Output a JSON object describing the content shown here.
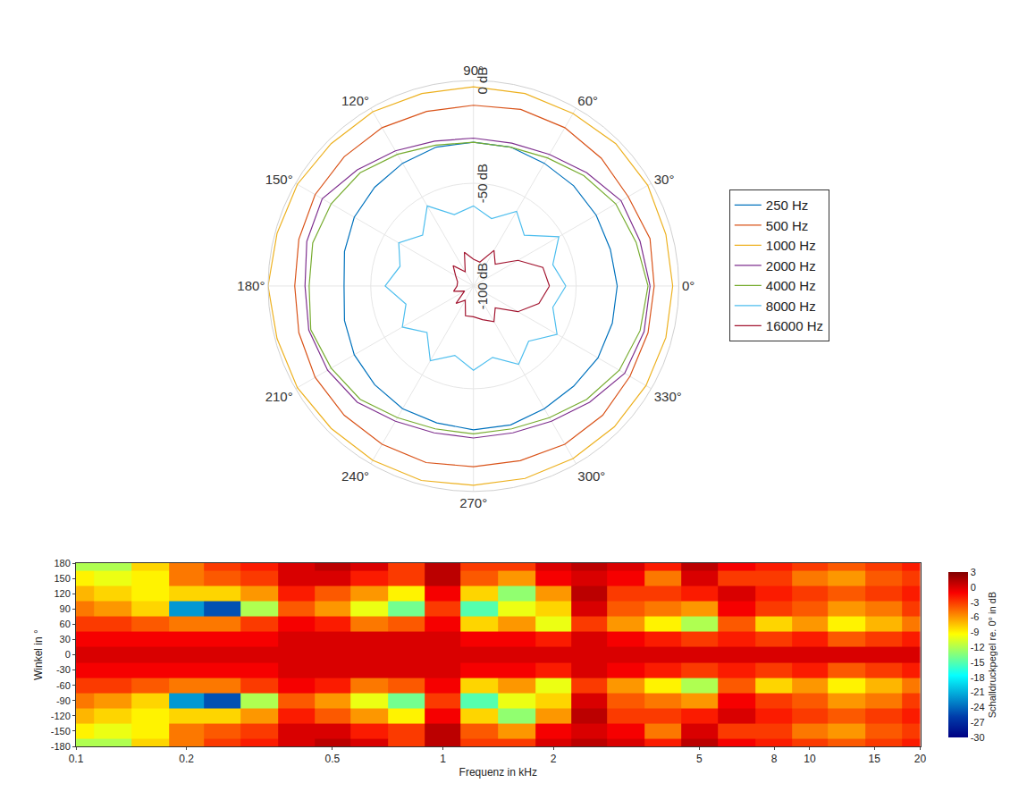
{
  "chart_data": [
    {
      "type": "polar",
      "theta": [
        0,
        15,
        30,
        45,
        60,
        75,
        90,
        105,
        120,
        135,
        150,
        165,
        180,
        195,
        210,
        225,
        240,
        255,
        270,
        285,
        300,
        315,
        330,
        345,
        360
      ],
      "angular_ticks": [
        {
          "value": 0,
          "label": "0°"
        },
        {
          "value": 30,
          "label": "30°"
        },
        {
          "value": 60,
          "label": "60°"
        },
        {
          "value": 90,
          "label": "90°"
        },
        {
          "value": 120,
          "label": "120°"
        },
        {
          "value": 150,
          "label": "150°"
        },
        {
          "value": 180,
          "label": "180°"
        },
        {
          "value": 210,
          "label": "210°"
        },
        {
          "value": 240,
          "label": "240°"
        },
        {
          "value": 270,
          "label": "270°"
        },
        {
          "value": 300,
          "label": "300°"
        },
        {
          "value": 330,
          "label": "330°"
        }
      ],
      "rlim": [
        -100,
        0
      ],
      "rticks": [
        {
          "value": -100,
          "label": "-100 dB"
        },
        {
          "value": -50,
          "label": "-50 dB"
        },
        {
          "value": 0,
          "label": "0 dB"
        }
      ],
      "grid": true,
      "legend": "right",
      "series": [
        {
          "name": "250 Hz",
          "color": "#0072BD",
          "values": [
            -30,
            -31,
            -31,
            -31,
            -31,
            -30,
            -30,
            -30,
            -31,
            -32,
            -33,
            -35,
            -37,
            -35,
            -33,
            -32,
            -31,
            -31,
            -30,
            -30,
            -31,
            -31,
            -30,
            -30,
            -30
          ]
        },
        {
          "name": "500 Hz",
          "color": "#D95319",
          "values": [
            -12,
            -11,
            -13,
            -12,
            -11,
            -11,
            -12,
            -12,
            -11,
            -11,
            -11,
            -12,
            -13,
            -12,
            -11,
            -11,
            -11,
            -11,
            -12,
            -12,
            -11,
            -11,
            -12,
            -12,
            -12
          ]
        },
        {
          "name": "1000 Hz",
          "color": "#EDB120",
          "values": [
            -3,
            -3,
            -2,
            -2,
            -3,
            -3,
            -3,
            -3,
            -2,
            -2,
            -1,
            -1,
            0,
            -1,
            -1,
            -2,
            -2,
            -2,
            -3,
            -3,
            -3,
            -3,
            -3,
            -3,
            -3
          ]
        },
        {
          "name": "2000 Hz",
          "color": "#7E2F8E",
          "values": [
            -14,
            -16,
            -17,
            -22,
            -26,
            -28,
            -28,
            -27,
            -24,
            -20,
            -15,
            -16,
            -18,
            -17,
            -18,
            -20,
            -24,
            -26,
            -26,
            -26,
            -24,
            -20,
            -15,
            -14,
            -14
          ]
        },
        {
          "name": "4000 Hz",
          "color": "#77AC30",
          "values": [
            -15,
            -18,
            -20,
            -24,
            -28,
            -30,
            -30,
            -29,
            -26,
            -22,
            -20,
            -19,
            -20,
            -18,
            -20,
            -22,
            -26,
            -28,
            -28,
            -28,
            -26,
            -22,
            -18,
            -16,
            -15
          ]
        },
        {
          "name": "8000 Hz",
          "color": "#4DBEEE",
          "values": [
            -55,
            -60,
            -52,
            -65,
            -58,
            -66,
            -61,
            -64,
            -55,
            -65,
            -58,
            -63,
            -57,
            -66,
            -60,
            -68,
            -58,
            -65,
            -59,
            -64,
            -56,
            -62,
            -53,
            -60,
            -55
          ]
        },
        {
          "name": "16000 Hz",
          "color": "#A2142F",
          "values": [
            -63,
            -65,
            -75,
            -85,
            -80,
            -88,
            -87,
            -83,
            -92,
            -86,
            -90,
            -92,
            -92,
            -90,
            -95,
            -88,
            -92,
            -85,
            -85,
            -83,
            -80,
            -85,
            -75,
            -67,
            -63
          ]
        }
      ]
    },
    {
      "type": "heatmap",
      "xlabel": "Frequenz in kHz",
      "ylabel": "Winkel in °",
      "log": "x",
      "xlim": [
        0.1,
        20
      ],
      "xticks": [
        0.1,
        0.2,
        0.5,
        1,
        2,
        5,
        8,
        10,
        15,
        20
      ],
      "ylim": [
        -180,
        180
      ],
      "yticks": [
        -180,
        -150,
        -120,
        -90,
        -60,
        -30,
        0,
        30,
        60,
        90,
        120,
        150,
        180
      ],
      "x": [
        0.1,
        0.125,
        0.16,
        0.2,
        0.25,
        0.315,
        0.4,
        0.5,
        0.63,
        0.8,
        1,
        1.25,
        1.6,
        2,
        2.5,
        3.15,
        4,
        5,
        6.3,
        8,
        10,
        12.5,
        16,
        20
      ],
      "y": [
        -180,
        -150,
        -120,
        -90,
        -60,
        -30,
        0,
        30,
        60,
        90,
        120,
        150,
        180
      ],
      "z": [
        [
          -12,
          -12,
          -8,
          -5,
          -3,
          -2,
          0,
          1,
          0,
          -3,
          1,
          -3,
          -3,
          0,
          1,
          0,
          -2,
          1,
          -1,
          -2,
          -3,
          -4,
          -3,
          -2
        ],
        [
          -9,
          -10,
          -9,
          -5,
          -4,
          -3,
          0,
          0,
          -2,
          -3,
          1,
          -4,
          -6,
          -1,
          0,
          -1,
          -5,
          0,
          -3,
          -3,
          -5,
          -6,
          -4,
          -3
        ],
        [
          -7,
          -8,
          -9,
          -8,
          -8,
          -6,
          -2,
          -4,
          -6,
          -9,
          -1,
          -8,
          -13,
          -6,
          1,
          -3,
          -3,
          -2,
          0,
          -2,
          -3,
          -4,
          -3,
          -2
        ],
        [
          -5,
          -6,
          -8,
          -22,
          -25,
          -12,
          -4,
          -6,
          -10,
          -14,
          -3,
          -15,
          -10,
          -8,
          0,
          -4,
          -5,
          -6,
          -1,
          -3,
          -4,
          -6,
          -5,
          -3
        ],
        [
          -3,
          -3,
          -4,
          -5,
          -5,
          -3,
          -1,
          -2,
          -5,
          -4,
          -1,
          -8,
          -6,
          -10,
          -3,
          -6,
          -9,
          -12,
          -4,
          -8,
          -6,
          -9,
          -7,
          -5
        ],
        [
          -1,
          -1,
          -1,
          -1,
          -1,
          -1,
          0,
          0,
          0,
          0,
          0,
          -1,
          -1,
          -2,
          0,
          -1,
          -2,
          -3,
          -2,
          -3,
          -2,
          -4,
          -3,
          -2
        ],
        [
          0,
          0,
          0,
          0,
          0,
          0,
          0,
          0,
          0,
          0,
          0,
          0,
          0,
          0,
          0,
          0,
          0,
          0,
          0,
          0,
          0,
          0,
          0,
          0
        ],
        [
          -1,
          -1,
          -1,
          -1,
          -1,
          -1,
          0,
          0,
          0,
          0,
          0,
          -1,
          -1,
          -2,
          0,
          -1,
          -2,
          -3,
          -2,
          -3,
          -2,
          -4,
          -3,
          -2
        ],
        [
          -3,
          -3,
          -4,
          -5,
          -5,
          -3,
          -1,
          -2,
          -5,
          -4,
          -1,
          -8,
          -6,
          -10,
          -3,
          -6,
          -9,
          -12,
          -4,
          -8,
          -6,
          -9,
          -7,
          -5
        ],
        [
          -5,
          -6,
          -8,
          -22,
          -25,
          -12,
          -4,
          -6,
          -10,
          -14,
          -3,
          -15,
          -10,
          -8,
          0,
          -4,
          -5,
          -6,
          -1,
          -3,
          -4,
          -6,
          -5,
          -3
        ],
        [
          -7,
          -8,
          -9,
          -8,
          -8,
          -6,
          -2,
          -4,
          -6,
          -9,
          -1,
          -8,
          -13,
          -6,
          1,
          -3,
          -3,
          -2,
          0,
          -2,
          -3,
          -4,
          -3,
          -2
        ],
        [
          -9,
          -10,
          -9,
          -5,
          -4,
          -3,
          0,
          0,
          -2,
          -3,
          1,
          -4,
          -6,
          -1,
          0,
          -1,
          -5,
          0,
          -3,
          -3,
          -5,
          -6,
          -4,
          -3
        ],
        [
          -12,
          -12,
          -8,
          -5,
          -3,
          -2,
          0,
          1,
          0,
          -3,
          1,
          -3,
          -3,
          0,
          1,
          0,
          -2,
          1,
          -1,
          -2,
          -3,
          -4,
          -3,
          -2
        ]
      ],
      "colorbar_title": "Schalldruckpegel re. 0° in dB",
      "colorbar_range": [
        -30,
        3
      ],
      "colorbar_ticks": [
        3,
        0,
        -3,
        -6,
        -9,
        -12,
        -15,
        -18,
        -21,
        -24,
        -27,
        -30
      ]
    }
  ]
}
